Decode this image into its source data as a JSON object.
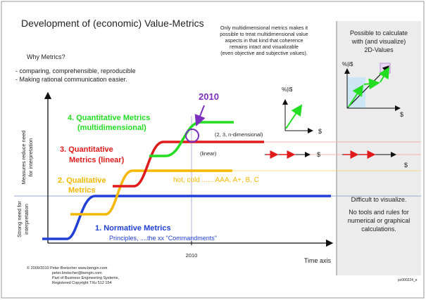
{
  "title": "Development of (economic) Value-Metrics",
  "top_note": [
    "Only multidimensional metrics makes it",
    "possible to treat multidimensional value",
    "aspects in that kind that coherence",
    "remains intact and visualizable",
    "(even objective and subjective values)."
  ],
  "why": {
    "heading": "Why Metrics?",
    "points": [
      "- comparing, comprehensible, reproducible",
      "- Making rational communication easier."
    ]
  },
  "axes": {
    "y_upper": [
      "Measures reduce need",
      "for interpretation"
    ],
    "y_lower": [
      "Strong need for",
      "interpretation"
    ],
    "x_label": "Time axis",
    "x_tick": "2010"
  },
  "marker_2010": "2010",
  "stages": [
    {
      "name": "normative",
      "color": "#1f3fd6",
      "lines": [
        "1. Normative Metrics"
      ],
      "example": "Principles, ....the xx \"Commandments\""
    },
    {
      "name": "qualitative",
      "color": "#f5b800",
      "lines": [
        "2. Qualitative",
        "Metrics"
      ],
      "example": "hot, cold ...... AAA, A+, B, C"
    },
    {
      "name": "quant-linear",
      "color": "#e01a1a",
      "lines": [
        "3. Quantitative",
        "Metrics (linear)"
      ],
      "example": "(linear)"
    },
    {
      "name": "quant-multi",
      "color": "#22dd22",
      "lines": [
        "4. Quantitative Metrics",
        "(multidimensional)"
      ],
      "example": "(2, 3, n-dimensional)"
    }
  ],
  "right_panel": {
    "heading": [
      "Possible to calculate",
      "with (and visualize)",
      "2D-Values"
    ],
    "axis_label": "%|i$",
    "x_symbol": "$",
    "difficult": "Difficult to visualize.",
    "no_tools": [
      "No tools and rules for",
      "numerical or graphical",
      "calculations."
    ]
  },
  "mini": {
    "y_label": "%|i$",
    "x_symbol": "$"
  },
  "footer": {
    "lines": [
      "© 2009/2010   Peter Bretscher www.bengin.com",
      "peter.bretscher@bengin.com",
      "Part of Business Engineering Systems,",
      "Registered Copyright TXu 512 154"
    ],
    "code": "pc000224_e"
  }
}
